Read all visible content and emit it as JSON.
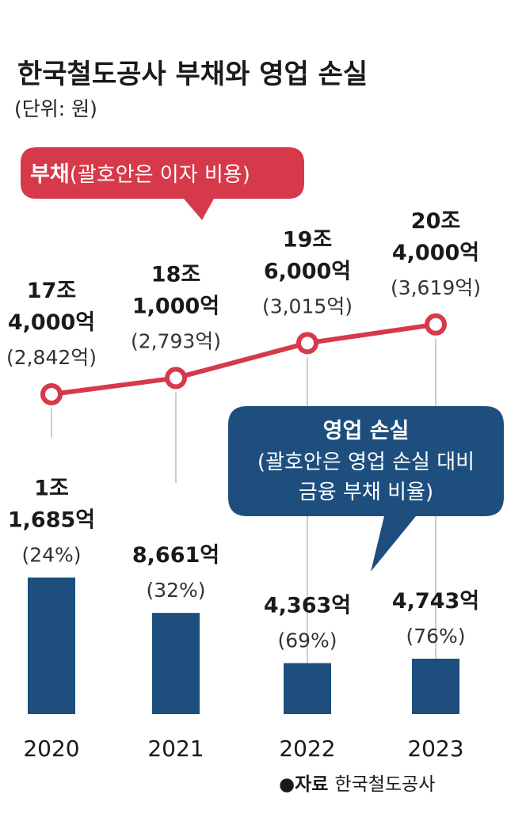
{
  "title": "한국철도공사 부채와 영업 손실",
  "unit": "(단위: 원)",
  "colors": {
    "debt": "#d63a4a",
    "loss": "#1d4e7e",
    "guide": "#bbbbbb"
  },
  "debt_callout": {
    "bold": "부채",
    "rest": "(괄호안은 이자 비용)"
  },
  "loss_callout": {
    "line1": "영업 손실",
    "line2": "(괄호안은 영업 손실 대비",
    "line3": "금융 부채 비율)"
  },
  "source": {
    "marker": "●",
    "label": "자료",
    "name": "한국철도공사"
  },
  "chart_data": {
    "type": "bar+line",
    "categories": [
      "2020",
      "2021",
      "2022",
      "2023"
    ],
    "series": [
      {
        "name": "부채",
        "type": "line",
        "values": [
          174000,
          181000,
          196000,
          204000
        ],
        "unit": "억 원",
        "labels": [
          [
            "17조",
            "4,000억"
          ],
          [
            "18조",
            "1,000억"
          ],
          [
            "19조",
            "6,000억"
          ],
          [
            "20조",
            "4,000억"
          ]
        ],
        "interest": [
          "(2,842억)",
          "(2,793억)",
          "(3,015억)",
          "(3,619억)"
        ]
      },
      {
        "name": "영업 손실",
        "type": "bar",
        "values": [
          11685,
          8661,
          4363,
          4743
        ],
        "unit": "억 원",
        "labels": [
          [
            "1조",
            "1,685억"
          ],
          [
            "8,661억"
          ],
          [
            "4,363억"
          ],
          [
            "4,743억"
          ]
        ],
        "ratio": [
          "(24%)",
          "(32%)",
          "(69%)",
          "(76%)"
        ]
      }
    ]
  }
}
